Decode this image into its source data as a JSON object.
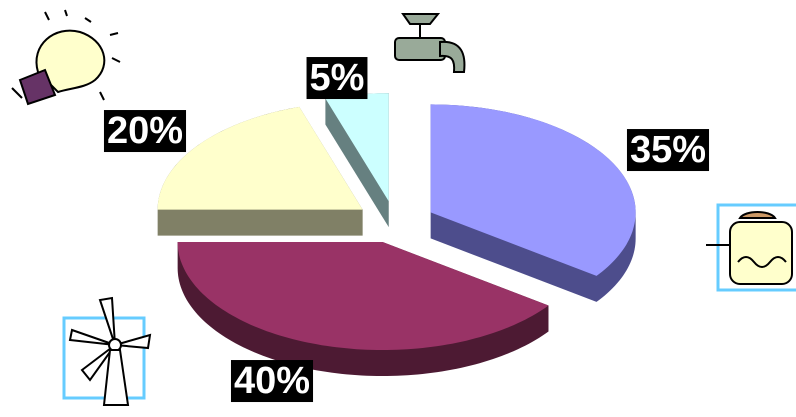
{
  "chart_data": {
    "type": "pie",
    "values": [
      35,
      40,
      20,
      5
    ],
    "value_labels": [
      "35%",
      "40%",
      "20%",
      "5%"
    ],
    "colors": [
      "#9999ff",
      "#993366",
      "#ffffcc",
      "#ccffff"
    ],
    "side_colors": [
      "#4d4d8c",
      "#4d1a33",
      "#808066",
      "#668080"
    ]
  }
}
